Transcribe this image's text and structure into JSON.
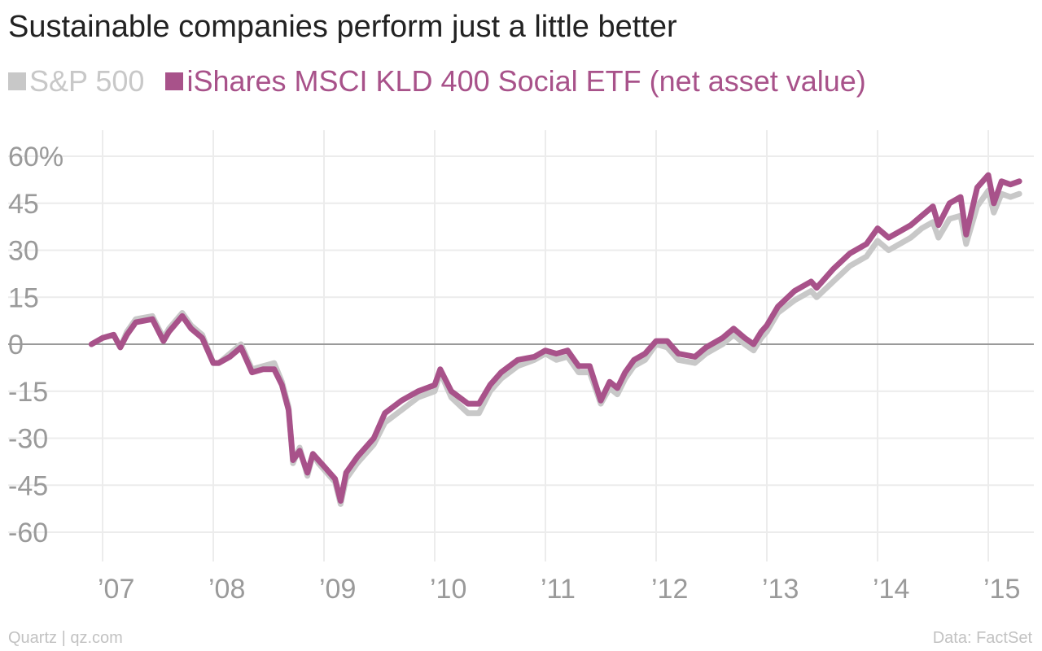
{
  "chart_data": {
    "type": "line",
    "title": "Sustainable companies perform just a little better",
    "xlabel": "",
    "ylabel": "",
    "ylim": [
      -70,
      64
    ],
    "y_ticks": [
      60,
      45,
      30,
      15,
      0,
      -15,
      -30,
      -45,
      -60
    ],
    "y_tick_labels": [
      "60%",
      "45",
      "30",
      "15",
      "0",
      "-15",
      "-30",
      "-45",
      "-60"
    ],
    "xlim": [
      2006.75,
      2015.35
    ],
    "x_ticks": [
      2007,
      2008,
      2009,
      2010,
      2011,
      2012,
      2013,
      2014,
      2015
    ],
    "x_tick_labels": [
      "’07",
      "’08",
      "’09",
      "’10",
      "’11",
      "’12",
      "’13",
      "’14",
      "’15"
    ],
    "grid": true,
    "legend_position": "top-left",
    "series": [
      {
        "name": "S&P 500",
        "color": "#c8c8c8",
        "x": [
          2006.9,
          2007.0,
          2007.1,
          2007.16,
          2007.22,
          2007.3,
          2007.45,
          2007.55,
          2007.6,
          2007.72,
          2007.8,
          2007.9,
          2008.0,
          2008.05,
          2008.15,
          2008.25,
          2008.35,
          2008.45,
          2008.55,
          2008.62,
          2008.68,
          2008.72,
          2008.78,
          2008.85,
          2008.9,
          2008.95,
          2009.0,
          2009.1,
          2009.15,
          2009.2,
          2009.3,
          2009.45,
          2009.55,
          2009.7,
          2009.85,
          2010.0,
          2010.05,
          2010.15,
          2010.3,
          2010.4,
          2010.5,
          2010.6,
          2010.75,
          2010.9,
          2011.0,
          2011.1,
          2011.2,
          2011.3,
          2011.4,
          2011.5,
          2011.58,
          2011.65,
          2011.72,
          2011.8,
          2011.9,
          2012.0,
          2012.1,
          2012.2,
          2012.35,
          2012.45,
          2012.6,
          2012.7,
          2012.8,
          2012.88,
          2012.95,
          2013.0,
          2013.1,
          2013.25,
          2013.4,
          2013.45,
          2013.6,
          2013.75,
          2013.9,
          2014.0,
          2014.1,
          2014.2,
          2014.3,
          2014.4,
          2014.5,
          2014.55,
          2014.65,
          2014.75,
          2014.8,
          2014.9,
          2015.0,
          2015.05,
          2015.12,
          2015.2,
          2015.28
        ],
        "values": [
          0,
          2,
          3,
          -1,
          4,
          8,
          9,
          2,
          5,
          10,
          6,
          3,
          -6,
          -6,
          -3,
          0,
          -8,
          -7,
          -6,
          -12,
          -20,
          -38,
          -33,
          -42,
          -35,
          -38,
          -40,
          -44,
          -51,
          -43,
          -38,
          -32,
          -25,
          -21,
          -17,
          -15,
          -9,
          -17,
          -22,
          -22,
          -15,
          -11,
          -7,
          -5,
          -3,
          -5,
          -4,
          -9,
          -9,
          -19,
          -14,
          -16,
          -11,
          -7,
          -5,
          0,
          -1,
          -5,
          -6,
          -3,
          0,
          3,
          0,
          -2,
          2,
          4,
          10,
          14,
          17,
          15,
          20,
          25,
          28,
          33,
          30,
          32,
          34,
          37,
          39,
          34,
          40,
          41,
          32,
          44,
          49,
          42,
          48,
          47,
          48
        ]
      },
      {
        "name": "iShares MSCI KLD 400 Social ETF (net asset value)",
        "color": "#a8528a",
        "x": [
          2006.9,
          2007.0,
          2007.1,
          2007.16,
          2007.22,
          2007.3,
          2007.45,
          2007.55,
          2007.6,
          2007.72,
          2007.8,
          2007.9,
          2008.0,
          2008.05,
          2008.15,
          2008.25,
          2008.35,
          2008.45,
          2008.55,
          2008.62,
          2008.68,
          2008.72,
          2008.78,
          2008.85,
          2008.9,
          2008.95,
          2009.0,
          2009.1,
          2009.15,
          2009.2,
          2009.3,
          2009.45,
          2009.55,
          2009.7,
          2009.85,
          2010.0,
          2010.05,
          2010.15,
          2010.3,
          2010.4,
          2010.5,
          2010.6,
          2010.75,
          2010.9,
          2011.0,
          2011.1,
          2011.2,
          2011.3,
          2011.4,
          2011.5,
          2011.58,
          2011.65,
          2011.72,
          2011.8,
          2011.9,
          2012.0,
          2012.1,
          2012.2,
          2012.35,
          2012.45,
          2012.6,
          2012.7,
          2012.8,
          2012.88,
          2012.95,
          2013.0,
          2013.1,
          2013.25,
          2013.4,
          2013.45,
          2013.6,
          2013.75,
          2013.9,
          2014.0,
          2014.1,
          2014.2,
          2014.3,
          2014.4,
          2014.5,
          2014.55,
          2014.65,
          2014.75,
          2014.8,
          2014.9,
          2015.0,
          2015.05,
          2015.12,
          2015.2,
          2015.28
        ],
        "values": [
          0,
          2,
          3,
          -1,
          3,
          7,
          8,
          1,
          4,
          9,
          5,
          2,
          -6,
          -6,
          -4,
          -1,
          -9,
          -8,
          -8,
          -13,
          -21,
          -37,
          -34,
          -41,
          -35,
          -37,
          -39,
          -43,
          -50,
          -41,
          -36,
          -30,
          -22,
          -18,
          -15,
          -13,
          -8,
          -15,
          -19,
          -19,
          -13,
          -9,
          -5,
          -4,
          -2,
          -3,
          -2,
          -7,
          -7,
          -18,
          -12,
          -14,
          -9,
          -5,
          -3,
          1,
          1,
          -3,
          -4,
          -1,
          2,
          5,
          2,
          0,
          4,
          6,
          12,
          17,
          20,
          18,
          24,
          29,
          32,
          37,
          34,
          36,
          38,
          41,
          44,
          38,
          45,
          47,
          35,
          50,
          54,
          45,
          52,
          51,
          52
        ]
      }
    ]
  },
  "footer": {
    "source_left": "Quartz | qz.com",
    "source_right": "Data: FactSet"
  }
}
